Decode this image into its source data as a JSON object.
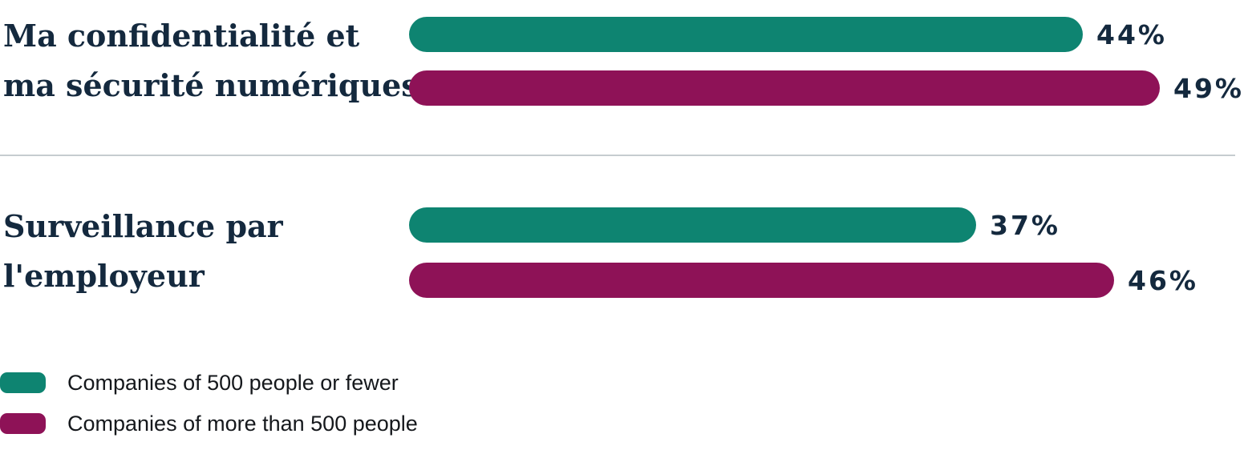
{
  "chart_data": {
    "type": "bar",
    "orientation": "horizontal",
    "value_unit": "%",
    "xlim": [
      0,
      100
    ],
    "grid": false,
    "legend_position": "bottom-left",
    "categories": [
      "Ma confidentialité et ma sécurité numériques",
      "Surveillance par l'employeur"
    ],
    "series": [
      {
        "name": "Companies of 500 people or fewer",
        "values": [
          44,
          37
        ]
      },
      {
        "name": "Companies of more than 500 people",
        "values": [
          49,
          46
        ]
      }
    ],
    "groups": [
      {
        "category": "Ma confidentialité et ma sécurité numériques",
        "label_lines": [
          "Ma confidentialité et",
          "ma sécurité numériques"
        ],
        "bars": [
          {
            "series": "Companies of 500 people or fewer",
            "value": 44,
            "label": "44%"
          },
          {
            "series": "Companies of more than 500 people",
            "value": 49,
            "label": "49%"
          }
        ]
      },
      {
        "category": "Surveillance par l'employeur",
        "label_lines": [
          "Surveillance par",
          "l'employeur"
        ],
        "bars": [
          {
            "series": "Companies of 500 people or fewer",
            "value": 37,
            "label": "37%"
          },
          {
            "series": "Companies of more than 500 people",
            "value": 46,
            "label": "46%"
          }
        ]
      }
    ]
  },
  "legend": {
    "items": [
      {
        "label": "Companies of 500 people or fewer",
        "color": "#0E8471"
      },
      {
        "label": "Companies of more than 500 people",
        "color": "#8E1257"
      }
    ]
  },
  "colors": {
    "category_text": "#14293E",
    "value_text": "#14293E",
    "legend_text": "#15181C",
    "divider": "#C6CCD0",
    "background": "#FFFFFF"
  }
}
